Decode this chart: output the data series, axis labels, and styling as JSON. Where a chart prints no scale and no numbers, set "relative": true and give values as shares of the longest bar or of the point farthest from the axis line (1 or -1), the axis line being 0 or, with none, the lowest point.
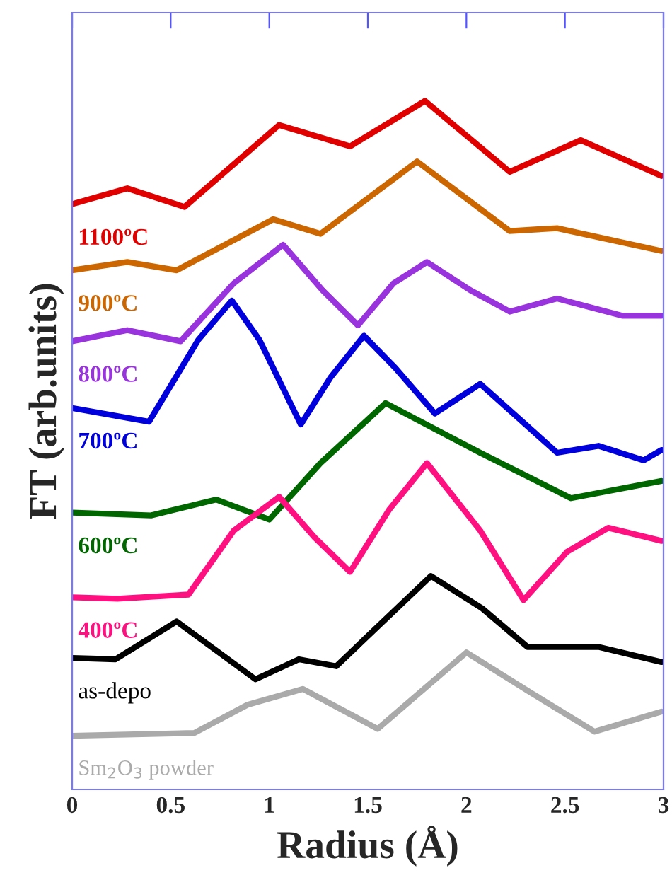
{
  "chart_data": {
    "type": "line",
    "relative": true,
    "xlabel": "Radius (Å)",
    "ylabel": "FT (arb.units)",
    "xlim": [
      0,
      3
    ],
    "xticks": [
      0,
      0.5,
      1,
      1.5,
      2,
      2.5,
      3
    ],
    "grid": false,
    "legend": false,
    "marker": "none",
    "line_style": "solid",
    "series": [
      {
        "name": "1100ºC",
        "color": "#e00000",
        "x": [
          0,
          0.28,
          0.57,
          1.05,
          1.41,
          1.79,
          2.22,
          2.58,
          2.99
        ],
        "values": [
          0.85,
          0.873,
          0.846,
          0.965,
          0.934,
          1.0,
          0.897,
          0.943,
          0.891
        ]
      },
      {
        "name": "900ºC",
        "color": "#cc6600",
        "x": [
          0,
          0.28,
          0.53,
          1.02,
          1.26,
          1.75,
          2.22,
          2.46,
          2.99
        ],
        "values": [
          0.754,
          0.766,
          0.754,
          0.828,
          0.807,
          0.912,
          0.811,
          0.815,
          0.782
        ]
      },
      {
        "name": "800ºC",
        "color": "#9933dd",
        "x": [
          0,
          0.28,
          0.55,
          0.82,
          1.07,
          1.27,
          1.45,
          1.63,
          1.8,
          2.02,
          2.22,
          2.46,
          2.79,
          2.99
        ],
        "values": [
          0.651,
          0.667,
          0.651,
          0.735,
          0.791,
          0.725,
          0.674,
          0.735,
          0.766,
          0.725,
          0.694,
          0.713,
          0.688,
          0.688
        ]
      },
      {
        "name": "700ºC",
        "color": "#0000dd",
        "x": [
          0,
          0.39,
          0.64,
          0.81,
          0.95,
          1.16,
          1.31,
          1.48,
          1.64,
          1.84,
          2.07,
          2.46,
          2.67,
          2.9,
          2.99
        ],
        "values": [
          0.554,
          0.534,
          0.653,
          0.71,
          0.653,
          0.53,
          0.598,
          0.659,
          0.612,
          0.546,
          0.589,
          0.489,
          0.499,
          0.478,
          0.493
        ]
      },
      {
        "name": "600ºC",
        "color": "#006600",
        "x": [
          0,
          0.4,
          0.73,
          1.0,
          1.26,
          1.59,
          2.07,
          2.53,
          2.99
        ],
        "values": [
          0.402,
          0.398,
          0.421,
          0.392,
          0.474,
          0.561,
          0.489,
          0.423,
          0.448
        ]
      },
      {
        "name": "400ºC",
        "color": "#ff1080",
        "x": [
          0,
          0.23,
          0.59,
          0.82,
          1.05,
          1.23,
          1.41,
          1.61,
          1.8,
          2.07,
          2.29,
          2.51,
          2.72,
          2.99
        ],
        "values": [
          0.279,
          0.277,
          0.283,
          0.376,
          0.425,
          0.366,
          0.316,
          0.407,
          0.474,
          0.376,
          0.275,
          0.345,
          0.38,
          0.361
        ]
      },
      {
        "name": "as-depo",
        "color": "#000000",
        "x": [
          0,
          0.22,
          0.53,
          0.93,
          1.15,
          1.34,
          1.57,
          1.82,
          2.08,
          2.31,
          2.67,
          2.99
        ],
        "values": [
          0.191,
          0.189,
          0.244,
          0.16,
          0.189,
          0.179,
          0.242,
          0.31,
          0.263,
          0.207,
          0.207,
          0.185
        ]
      },
      {
        "name": "Sm$_{2}$O$_{3}$ powder",
        "color": "#aaaaaa",
        "x": [
          0,
          0.62,
          0.89,
          1.17,
          1.55,
          2.0,
          2.33,
          2.65,
          2.99
        ],
        "values": [
          0.078,
          0.082,
          0.123,
          0.146,
          0.088,
          0.199,
          0.14,
          0.084,
          0.113
        ]
      }
    ]
  }
}
